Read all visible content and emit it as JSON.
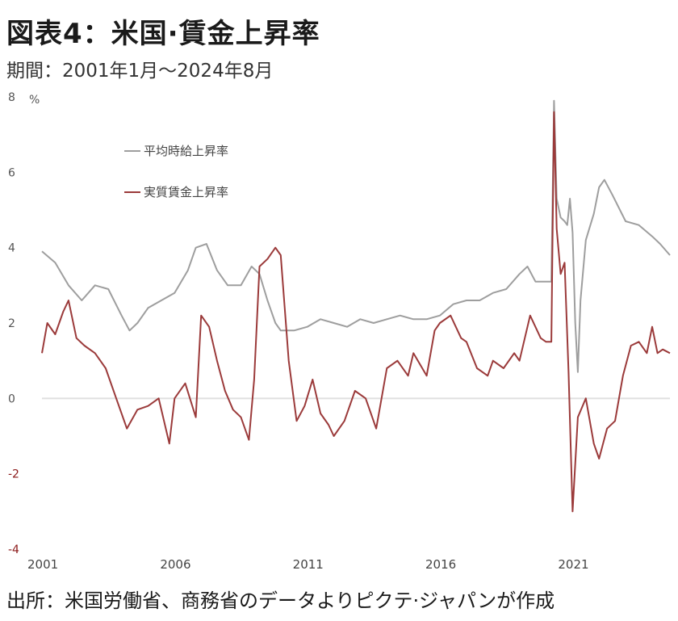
{
  "header": {
    "title": "図表4：米国·賃金上昇率",
    "subtitle": "期間：2001年1月～2024年8月"
  },
  "footer": {
    "source": "出所：米国労働省、商務省のデータよりピクテ·ジャパンが作成"
  },
  "chart_data": {
    "type": "line",
    "title": "",
    "xlabel": "",
    "ylabel": "%",
    "unit_label": "%",
    "xlim": [
      2001.0,
      2024.67
    ],
    "ylim": [
      -4,
      8
    ],
    "yticks": [
      -4,
      -2,
      0,
      2,
      4,
      6,
      8
    ],
    "xticks": [
      2001,
      2006,
      2011,
      2016,
      2021
    ],
    "xtick_labels": [
      "2001",
      "2006",
      "2011",
      "2016",
      "2021"
    ],
    "grid": false,
    "zero_line": true,
    "legend_position": "top-left",
    "colors": {
      "nominal": "#9e9e9e",
      "real": "#9b3a3a",
      "zero": "#e0e0e0"
    },
    "series": [
      {
        "name": "平均時給上昇率",
        "x": [
          2001.0,
          2001.5,
          2002.0,
          2002.5,
          2003.0,
          2003.5,
          2004.0,
          2004.3,
          2004.6,
          2005.0,
          2005.5,
          2006.0,
          2006.5,
          2006.8,
          2007.2,
          2007.6,
          2008.0,
          2008.5,
          2008.9,
          2009.2,
          2009.5,
          2009.8,
          2010.0,
          2010.5,
          2011.0,
          2011.5,
          2012.0,
          2012.5,
          2013.0,
          2013.5,
          2014.0,
          2014.5,
          2015.0,
          2015.5,
          2016.0,
          2016.5,
          2017.0,
          2017.5,
          2018.0,
          2018.5,
          2019.0,
          2019.3,
          2019.6,
          2020.0,
          2020.2,
          2020.3,
          2020.4,
          2020.55,
          2020.7,
          2020.8,
          2020.9,
          2021.0,
          2021.1,
          2021.2,
          2021.3,
          2021.5,
          2021.8,
          2022.0,
          2022.2,
          2022.5,
          2023.0,
          2023.5,
          2024.0,
          2024.3,
          2024.67
        ],
        "values": [
          3.9,
          3.6,
          3.0,
          2.6,
          3.0,
          2.9,
          2.2,
          1.8,
          2.0,
          2.4,
          2.6,
          2.8,
          3.4,
          4.0,
          4.1,
          3.4,
          3.0,
          3.0,
          3.5,
          3.3,
          2.6,
          2.0,
          1.8,
          1.8,
          1.9,
          2.1,
          2.0,
          1.9,
          2.1,
          2.0,
          2.1,
          2.2,
          2.1,
          2.1,
          2.2,
          2.5,
          2.6,
          2.6,
          2.8,
          2.9,
          3.3,
          3.5,
          3.1,
          3.1,
          3.1,
          7.9,
          5.3,
          4.8,
          4.7,
          4.6,
          5.3,
          4.4,
          2.0,
          0.7,
          2.6,
          4.2,
          4.9,
          5.6,
          5.8,
          5.4,
          4.7,
          4.6,
          4.3,
          4.1,
          3.8
        ]
      },
      {
        "name": "実質賃金上昇率",
        "x": [
          2001.0,
          2001.2,
          2001.5,
          2001.8,
          2002.0,
          2002.3,
          2002.6,
          2003.0,
          2003.4,
          2003.8,
          2004.2,
          2004.6,
          2005.0,
          2005.4,
          2005.8,
          2006.0,
          2006.4,
          2006.8,
          2007.0,
          2007.3,
          2007.6,
          2007.9,
          2008.2,
          2008.5,
          2008.8,
          2009.0,
          2009.2,
          2009.5,
          2009.8,
          2010.0,
          2010.3,
          2010.6,
          2010.9,
          2011.2,
          2011.5,
          2011.8,
          2012.0,
          2012.4,
          2012.8,
          2013.2,
          2013.6,
          2014.0,
          2014.4,
          2014.8,
          2015.0,
          2015.5,
          2015.8,
          2016.0,
          2016.4,
          2016.8,
          2017.0,
          2017.4,
          2017.8,
          2018.0,
          2018.4,
          2018.8,
          2019.0,
          2019.4,
          2019.8,
          2020.0,
          2020.2,
          2020.3,
          2020.4,
          2020.55,
          2020.7,
          2020.85,
          2021.0,
          2021.2,
          2021.5,
          2021.8,
          2022.0,
          2022.3,
          2022.6,
          2022.9,
          2023.2,
          2023.5,
          2023.8,
          2024.0,
          2024.2,
          2024.4,
          2024.67
        ],
        "values": [
          1.2,
          2.0,
          1.7,
          2.3,
          2.6,
          1.6,
          1.4,
          1.2,
          0.8,
          0.0,
          -0.8,
          -0.3,
          -0.2,
          0.0,
          -1.2,
          0.0,
          0.4,
          -0.5,
          2.2,
          1.9,
          1.0,
          0.2,
          -0.3,
          -0.5,
          -1.1,
          0.5,
          3.5,
          3.7,
          4.0,
          3.8,
          1.0,
          -0.6,
          -0.2,
          0.5,
          -0.4,
          -0.7,
          -1.0,
          -0.6,
          0.2,
          0.0,
          -0.8,
          0.8,
          1.0,
          0.6,
          1.2,
          0.6,
          1.8,
          2.0,
          2.2,
          1.6,
          1.5,
          0.8,
          0.6,
          1.0,
          0.8,
          1.2,
          1.0,
          2.2,
          1.6,
          1.5,
          1.5,
          7.6,
          4.5,
          3.3,
          3.6,
          0.7,
          -3.0,
          -0.5,
          0.0,
          -1.2,
          -1.6,
          -0.8,
          -0.6,
          0.6,
          1.4,
          1.5,
          1.2,
          1.9,
          1.2,
          1.3,
          1.2
        ]
      }
    ]
  }
}
